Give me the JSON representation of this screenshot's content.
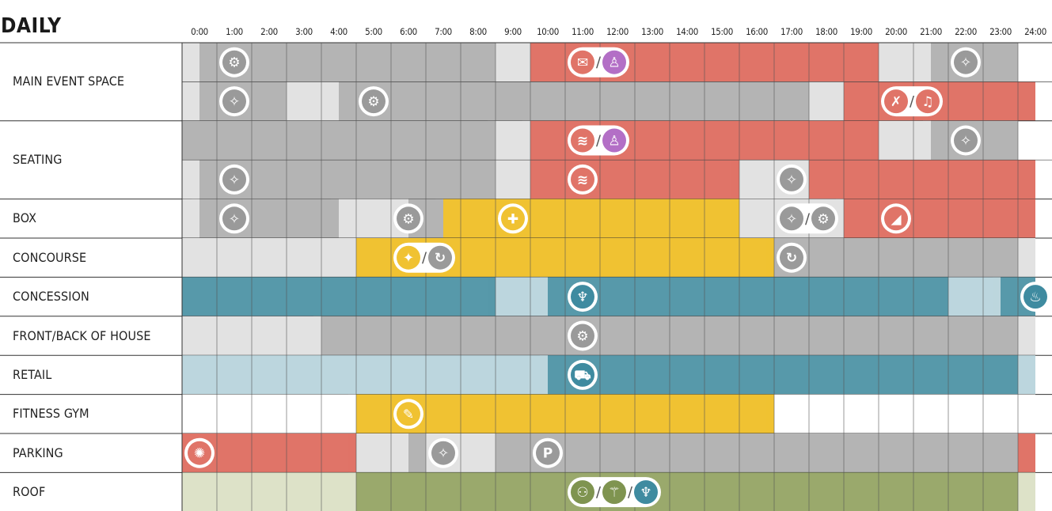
{
  "title": "DAILY",
  "hours": [
    "0:00",
    "1:00",
    "2:00",
    "3:00",
    "4:00",
    "5:00",
    "6:00",
    "7:00",
    "8:00",
    "9:00",
    "10:00",
    "11:00",
    "12:00",
    "13:00",
    "14:00",
    "15:00",
    "16:00",
    "17:00",
    "18:00",
    "19:00",
    "20:00",
    "21:00",
    "22:00",
    "23:00",
    "24:00"
  ],
  "colors": {
    "white": "#ffffff",
    "light_gray": "#e2e2e2",
    "gray": "#b4b4b4",
    "red": "#e07468",
    "yellow": "#f0c232",
    "teal": "#5799aa",
    "light_teal": "#bcd6de",
    "olive": "#9aa96c",
    "light_olive": "#dde2c8"
  },
  "rows": [
    {
      "label": "MAIN EVENT SPACE",
      "subrows": [
        {
          "segments": [
            [
              "light_gray",
              0,
              0.5
            ],
            [
              "gray",
              0.5,
              9
            ],
            [
              "light_gray",
              9,
              10
            ],
            [
              "red",
              10,
              20
            ],
            [
              "light_gray",
              20,
              21.5
            ],
            [
              "gray",
              21.5,
              24
            ]
          ],
          "icons": [
            {
              "t": 1,
              "names": [
                "gear-icon"
              ]
            },
            {
              "t": 11,
              "names": [
                "ticket-icon",
                "podium-icon"
              ]
            },
            {
              "t": 22,
              "names": [
                "cleaning-icon"
              ]
            }
          ]
        },
        {
          "segments": [
            [
              "light_gray",
              0,
              0.5
            ],
            [
              "gray",
              0.5,
              3
            ],
            [
              "light_gray",
              3,
              4.5
            ],
            [
              "gray",
              4.5,
              18
            ],
            [
              "light_gray",
              18,
              19
            ],
            [
              "red",
              19,
              24.5
            ]
          ],
          "icons": [
            {
              "t": 1,
              "names": [
                "cleaning-icon"
              ]
            },
            {
              "t": 5,
              "names": [
                "gear-icon"
              ]
            },
            {
              "t": 20,
              "names": [
                "hockey-icon",
                "music-icon"
              ]
            }
          ]
        }
      ]
    },
    {
      "label": "SEATING",
      "subrows": [
        {
          "segments": [
            [
              "gray",
              0,
              9
            ],
            [
              "light_gray",
              9,
              10
            ],
            [
              "red",
              10,
              20
            ],
            [
              "light_gray",
              20,
              21.5
            ],
            [
              "gray",
              21.5,
              24
            ]
          ],
          "icons": [
            {
              "t": 11,
              "names": [
                "seat-icon",
                "podium-icon"
              ]
            },
            {
              "t": 22,
              "names": [
                "cleaning-icon"
              ]
            }
          ]
        },
        {
          "segments": [
            [
              "light_gray",
              0,
              0.5
            ],
            [
              "gray",
              0.5,
              9
            ],
            [
              "light_gray",
              9,
              10
            ],
            [
              "red",
              10,
              16
            ],
            [
              "light_gray",
              16,
              18
            ],
            [
              "red",
              18,
              24.5
            ]
          ],
          "icons": [
            {
              "t": 1,
              "names": [
                "cleaning-icon"
              ]
            },
            {
              "t": 11,
              "names": [
                "seat-icon"
              ]
            },
            {
              "t": 17,
              "names": [
                "cleaning-icon"
              ]
            }
          ]
        }
      ]
    },
    {
      "label": "BOX",
      "subrows": [
        {
          "segments": [
            [
              "light_gray",
              0,
              0.5
            ],
            [
              "gray",
              0.5,
              4.5
            ],
            [
              "light_gray",
              4.5,
              6.5
            ],
            [
              "gray",
              6.5,
              7.5
            ],
            [
              "yellow",
              7.5,
              16
            ],
            [
              "light_gray",
              16,
              19
            ],
            [
              "red",
              19,
              24.5
            ]
          ],
          "icons": [
            {
              "t": 1,
              "names": [
                "cleaning-icon"
              ]
            },
            {
              "t": 6,
              "names": [
                "gear-icon"
              ]
            },
            {
              "t": 9,
              "names": [
                "first-aid-icon"
              ]
            },
            {
              "t": 17,
              "names": [
                "cleaning-icon",
                "gear-icon"
              ]
            },
            {
              "t": 20,
              "names": [
                "tag-icon"
              ]
            }
          ]
        }
      ]
    },
    {
      "label": "CONCOURSE",
      "subrows": [
        {
          "segments": [
            [
              "light_gray",
              0,
              5
            ],
            [
              "yellow",
              5,
              17
            ],
            [
              "gray",
              17,
              24
            ],
            [
              "light_gray",
              24,
              24.5
            ]
          ],
          "icons": [
            {
              "t": 6,
              "names": [
                "running-icon",
                "refresh-icon"
              ]
            },
            {
              "t": 17,
              "names": [
                "refresh-icon"
              ]
            }
          ]
        }
      ]
    },
    {
      "label": "CONCESSION",
      "subrows": [
        {
          "segments": [
            [
              "teal",
              0,
              9
            ],
            [
              "light_teal",
              9,
              10.5
            ],
            [
              "teal",
              10.5,
              22
            ],
            [
              "light_teal",
              22,
              23.5
            ],
            [
              "teal",
              23.5,
              24.5
            ]
          ],
          "icons": [
            {
              "t": 11,
              "names": [
                "dining-icon"
              ]
            },
            {
              "t": 24,
              "names": [
                "cooking-pot-icon"
              ]
            }
          ]
        }
      ]
    },
    {
      "label": "FRONT/BACK OF HOUSE",
      "subrows": [
        {
          "segments": [
            [
              "light_gray",
              0,
              4
            ],
            [
              "gray",
              4,
              24
            ],
            [
              "light_gray",
              24,
              24.5
            ]
          ],
          "icons": [
            {
              "t": 11,
              "names": [
                "gear-icon"
              ]
            }
          ]
        }
      ]
    },
    {
      "label": "RETAIL",
      "subrows": [
        {
          "segments": [
            [
              "light_teal",
              0,
              10.5
            ],
            [
              "teal",
              10.5,
              24
            ],
            [
              "light_teal",
              24,
              24.5
            ]
          ],
          "icons": [
            {
              "t": 11,
              "names": [
                "cart-icon"
              ]
            }
          ]
        }
      ]
    },
    {
      "label": "FITNESS GYM",
      "subrows": [
        {
          "segments": [
            [
              "white",
              0,
              5
            ],
            [
              "yellow",
              5,
              17
            ],
            [
              "white",
              17,
              24.5
            ]
          ],
          "icons": [
            {
              "t": 6,
              "names": [
                "dumbbell-icon"
              ]
            }
          ]
        }
      ]
    },
    {
      "label": "PARKING",
      "subrows": [
        {
          "segments": [
            [
              "red",
              0,
              5
            ],
            [
              "light_gray",
              5,
              6.5
            ],
            [
              "gray",
              6.5,
              7
            ],
            [
              "light_gray",
              7,
              9
            ],
            [
              "gray",
              9,
              24
            ],
            [
              "red",
              24,
              24.5
            ]
          ],
          "icons": [
            {
              "t": 0,
              "names": [
                "food-icon"
              ]
            },
            {
              "t": 7,
              "names": [
                "cleaning-icon"
              ]
            },
            {
              "t": 10,
              "names": [
                "parking-icon"
              ]
            }
          ]
        }
      ]
    },
    {
      "label": "ROOF",
      "subrows": [
        {
          "segments": [
            [
              "light_olive",
              0,
              5
            ],
            [
              "olive",
              5,
              24
            ],
            [
              "light_olive",
              24,
              24.5
            ]
          ],
          "icons": [
            {
              "t": 11,
              "names": [
                "crowd-icon",
                "yoga-icon",
                "dining-icon"
              ]
            }
          ]
        }
      ]
    }
  ]
}
